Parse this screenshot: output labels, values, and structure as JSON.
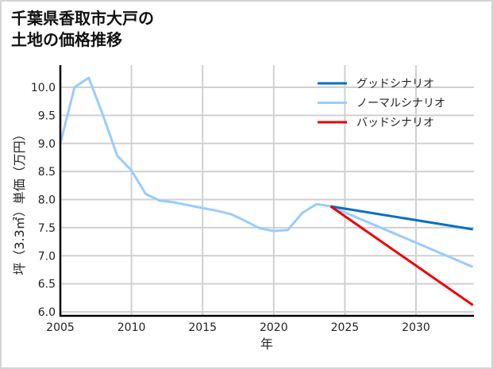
{
  "title": {
    "line1": "千葉県香取市大戸の",
    "line2": "土地の価格推移"
  },
  "chart_data": {
    "type": "line",
    "title": "千葉県香取市大戸の土地の価格推移",
    "xlabel": "年",
    "ylabel": "坪（3.3㎡）単価（万円）",
    "xlim": [
      2005,
      2034
    ],
    "ylim": [
      5.95,
      10.4
    ],
    "grid": true,
    "legend_position": "upper right",
    "x_ticks": [
      2005,
      2010,
      2015,
      2020,
      2025,
      2030
    ],
    "x_tick_labels": [
      "2005",
      "2010",
      "2015",
      "2020",
      "2025",
      "2030"
    ],
    "y_ticks": [
      6.0,
      6.5,
      7.0,
      7.5,
      8.0,
      8.5,
      9.0,
      9.5,
      10.0
    ],
    "y_tick_labels": [
      "6.0",
      "6.5",
      "7.0",
      "7.5",
      "8.0",
      "8.5",
      "9.0",
      "9.5",
      "10.0"
    ],
    "series": [
      {
        "name": "グッドシナリオ",
        "color": "#0a6fc4",
        "x": [
          2024,
          2034
        ],
        "values": [
          7.88,
          7.47
        ]
      },
      {
        "name": "ノーマルシナリオ",
        "color": "#99ccff",
        "x": [
          2005,
          2006,
          2007,
          2008,
          2009,
          2010,
          2011,
          2012,
          2013,
          2014,
          2015,
          2016,
          2017,
          2018,
          2019,
          2020,
          2021,
          2022,
          2023,
          2024,
          2034
        ],
        "values": [
          9.0,
          10.0,
          10.17,
          9.5,
          8.78,
          8.52,
          8.1,
          7.98,
          7.95,
          7.9,
          7.85,
          7.8,
          7.74,
          7.62,
          7.49,
          7.44,
          7.46,
          7.76,
          7.92,
          7.88,
          6.8
        ]
      },
      {
        "name": "バッドシナリオ",
        "color": "#ee0000",
        "x": [
          2024,
          2034
        ],
        "values": [
          7.88,
          6.12
        ]
      }
    ]
  }
}
